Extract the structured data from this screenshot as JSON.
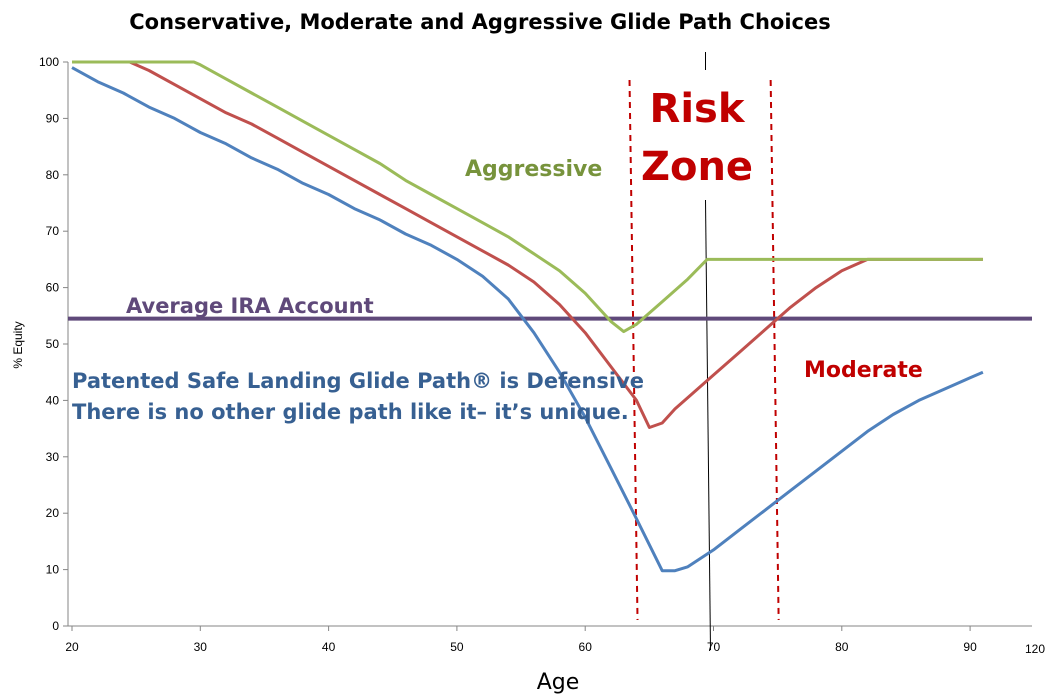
{
  "chart_data": {
    "type": "line",
    "title": "Conservative, Moderate and Aggressive Glide Path Choices",
    "xlabel": "Age",
    "ylabel": "% Equity",
    "xlim": [
      20,
      95
    ],
    "ylim": [
      0,
      100
    ],
    "x_ticks": [
      "20",
      "30",
      "40",
      "50",
      "60",
      "70",
      "80",
      "90"
    ],
    "x_tick_extra": "120",
    "y_ticks": [
      "0",
      "10",
      "20",
      "30",
      "40",
      "50",
      "60",
      "70",
      "80",
      "90",
      "100"
    ],
    "grid": false,
    "series": [
      {
        "key": "conservative",
        "color": "#4F81BD",
        "points": [
          [
            20,
            99
          ],
          [
            22,
            96.5
          ],
          [
            24,
            94.5
          ],
          [
            26,
            92
          ],
          [
            28,
            90
          ],
          [
            30,
            87.5
          ],
          [
            32,
            85.5
          ],
          [
            34,
            83
          ],
          [
            36,
            81
          ],
          [
            38,
            78.5
          ],
          [
            40,
            76.5
          ],
          [
            42,
            74
          ],
          [
            44,
            72
          ],
          [
            46,
            69.5
          ],
          [
            48,
            67.5
          ],
          [
            50,
            65
          ],
          [
            52,
            62
          ],
          [
            54,
            58
          ],
          [
            56,
            52
          ],
          [
            58,
            45
          ],
          [
            60,
            37
          ],
          [
            62,
            28
          ],
          [
            64,
            19
          ],
          [
            66,
            9.8
          ],
          [
            67,
            9.8
          ],
          [
            68,
            10.5
          ],
          [
            70,
            13.5
          ],
          [
            72,
            17
          ],
          [
            74,
            20.5
          ],
          [
            76,
            24
          ],
          [
            78,
            27.5
          ],
          [
            80,
            31
          ],
          [
            82,
            34.5
          ],
          [
            84,
            37.5
          ],
          [
            86,
            40
          ],
          [
            88,
            42
          ],
          [
            90,
            44
          ],
          [
            91,
            45
          ]
        ]
      },
      {
        "name": "Moderate",
        "key": "moderate",
        "color": "#C0504D",
        "points": [
          [
            20,
            100
          ],
          [
            24.5,
            100
          ],
          [
            26,
            98.5
          ],
          [
            28,
            96
          ],
          [
            30,
            93.5
          ],
          [
            32,
            91
          ],
          [
            34,
            89
          ],
          [
            36,
            86.5
          ],
          [
            38,
            84
          ],
          [
            40,
            81.5
          ],
          [
            42,
            79
          ],
          [
            44,
            76.5
          ],
          [
            46,
            74
          ],
          [
            48,
            71.5
          ],
          [
            50,
            69
          ],
          [
            52,
            66.5
          ],
          [
            54,
            64
          ],
          [
            56,
            61
          ],
          [
            58,
            57
          ],
          [
            60,
            52
          ],
          [
            62,
            46
          ],
          [
            64,
            40
          ],
          [
            65,
            35.2
          ],
          [
            66,
            36
          ],
          [
            67,
            38.5
          ],
          [
            68,
            40.5
          ],
          [
            70,
            44.5
          ],
          [
            72,
            48.5
          ],
          [
            74,
            52.5
          ],
          [
            76,
            56.5
          ],
          [
            78,
            60
          ],
          [
            80,
            63
          ],
          [
            82,
            65
          ],
          [
            84,
            65
          ],
          [
            86,
            65
          ],
          [
            88,
            65
          ],
          [
            90,
            65
          ],
          [
            91,
            65
          ]
        ]
      },
      {
        "name": "Aggressive",
        "key": "aggressive",
        "color": "#9BBB59",
        "points": [
          [
            20,
            100
          ],
          [
            29.5,
            100
          ],
          [
            30,
            99.5
          ],
          [
            32,
            97
          ],
          [
            34,
            94.5
          ],
          [
            36,
            92
          ],
          [
            38,
            89.5
          ],
          [
            40,
            87
          ],
          [
            42,
            84.5
          ],
          [
            44,
            82
          ],
          [
            46,
            79
          ],
          [
            48,
            76.5
          ],
          [
            50,
            74
          ],
          [
            52,
            71.5
          ],
          [
            54,
            69
          ],
          [
            56,
            66
          ],
          [
            58,
            63
          ],
          [
            60,
            59
          ],
          [
            62,
            54
          ],
          [
            63,
            52.2
          ],
          [
            64,
            53.5
          ],
          [
            66,
            57.5
          ],
          [
            68,
            61.5
          ],
          [
            69.5,
            65
          ],
          [
            72,
            65
          ],
          [
            75,
            65
          ],
          [
            80,
            65
          ],
          [
            85,
            65
          ],
          [
            91,
            65
          ]
        ]
      }
    ],
    "reference_line": {
      "label": "Average IRA Account",
      "y": 54.5,
      "color": "#5F497A"
    },
    "risk_zone": {
      "label_line1": "Risk",
      "label_line2": "Zone",
      "x_start": 64,
      "x_end": 75,
      "color": "#C00000"
    },
    "age_marker_x": 70
  },
  "annotations": {
    "aggressive_label": "Aggressive",
    "moderate_label": "Moderate",
    "defensive_line1": "Patented Safe Landing Glide Path® is Defensive",
    "defensive_line2": "There is no other glide path like it– it’s unique.",
    "aggressive_color": "#77933C",
    "moderate_color": "#C00000",
    "defensive_color": "#376092",
    "risk_color": "#C00000",
    "reference_color": "#5F497A"
  }
}
